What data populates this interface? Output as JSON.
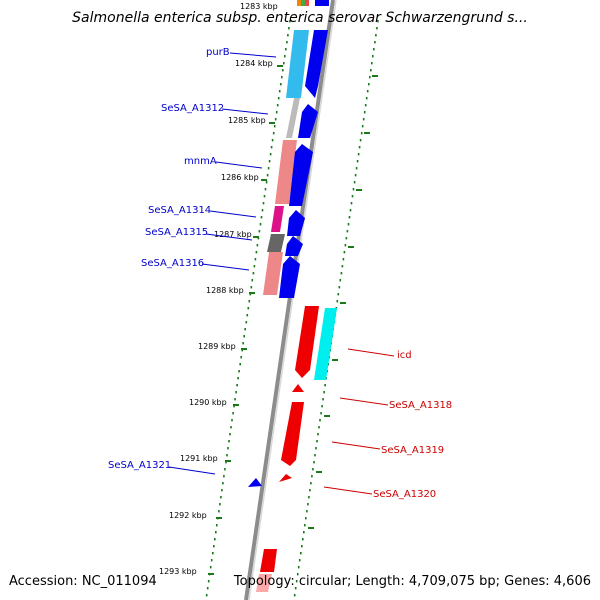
{
  "title": "Salmonella enterica subsp. enterica serovar Schwarzengrund s...",
  "footer": {
    "accession": "Accession: NC_011094",
    "topology": "Topology: circular; Length: 4,709,075 bp; Genes: 4,606"
  },
  "colors": {
    "backbone": "#8c8c8c",
    "tick": "#1a7a1a",
    "forward_label": "#0000cc",
    "reverse_label": "#cc0000"
  },
  "scale": {
    "partial_top_label": "1283 kbp",
    "labels": [
      "1284 kbp",
      "1285 kbp",
      "1286 kbp",
      "1287 kbp",
      "1288 kbp",
      "1289 kbp",
      "1290 kbp",
      "1291 kbp",
      "1292 kbp",
      "1293 kbp"
    ]
  },
  "features": [
    {
      "label": "purB",
      "strand": "forward",
      "cog_color": "#33bbee",
      "cds_color": "#0000ee"
    },
    {
      "label": "SeSA_A1312",
      "strand": "forward",
      "cog_color": "#bbbbbb",
      "cds_color": "#0000ee"
    },
    {
      "label": "mnmA",
      "strand": "forward",
      "cog_color": "#ee8888",
      "cds_color": "#0000ee"
    },
    {
      "label": "SeSA_A1314",
      "strand": "forward",
      "cog_color": "#dd1188",
      "cds_color": "#0000ee"
    },
    {
      "label": "SeSA_A1315",
      "strand": "forward",
      "cog_color": "#666666",
      "cds_color": "#0000ee"
    },
    {
      "label": "SeSA_A1316",
      "strand": "forward",
      "cog_color": "#ee8888",
      "cds_color": "#0000ee"
    },
    {
      "label": "icd",
      "strand": "reverse",
      "cog_color": "#00eeee",
      "cds_color": "#ee0000"
    },
    {
      "label": "SeSA_A1318",
      "strand": "reverse",
      "cog_color": "",
      "cds_color": "#ee0000"
    },
    {
      "label": "SeSA_A1319",
      "strand": "reverse",
      "cog_color": "",
      "cds_color": "#ee0000"
    },
    {
      "label": "SeSA_A1320",
      "strand": "reverse",
      "cog_color": "",
      "cds_color": "#ee0000"
    },
    {
      "label": "SeSA_A1321",
      "strand": "forward",
      "cog_color": "",
      "cds_color": "#0000ee"
    }
  ]
}
